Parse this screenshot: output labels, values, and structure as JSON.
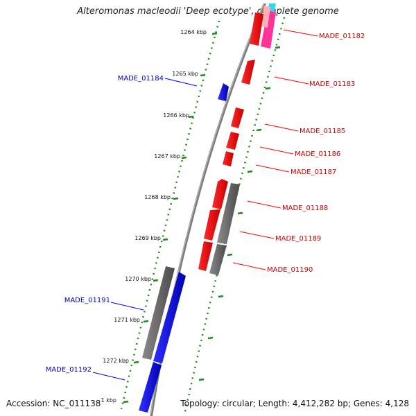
{
  "title": "Alteromonas macleodii 'Deep ecotype', complete genome",
  "footer": {
    "accession": "Accession: NC_011138",
    "topology": "Topology: circular; Length: 4,412,282 bp; Genes: 4,128"
  },
  "colors": {
    "forward_gene": "#ff0000",
    "reverse_gene": "#0000ff",
    "other_feature": "#808080",
    "forward_label": "#cc0000",
    "reverse_label": "#0000cc",
    "tick": "#1a8a1a",
    "backbone": "#909090"
  },
  "ticks": [
    "1264 kbp",
    "1265 kbp",
    "1266 kbp",
    "1267 kbp",
    "1268 kbp",
    "1269 kbp",
    "1270 kbp",
    "1271 kbp",
    "1272 kbp",
    "1 kbp"
  ],
  "genes": [
    {
      "name": "MADE_01182",
      "strand": "forward"
    },
    {
      "name": "MADE_01183",
      "strand": "forward"
    },
    {
      "name": "MADE_01184",
      "strand": "reverse"
    },
    {
      "name": "MADE_01185",
      "strand": "forward"
    },
    {
      "name": "MADE_01186",
      "strand": "forward"
    },
    {
      "name": "MADE_01187",
      "strand": "forward"
    },
    {
      "name": "MADE_01188",
      "strand": "forward"
    },
    {
      "name": "MADE_01189",
      "strand": "forward"
    },
    {
      "name": "MADE_01190",
      "strand": "forward"
    },
    {
      "name": "MADE_01191",
      "strand": "reverse"
    },
    {
      "name": "MADE_01192",
      "strand": "reverse"
    }
  ]
}
